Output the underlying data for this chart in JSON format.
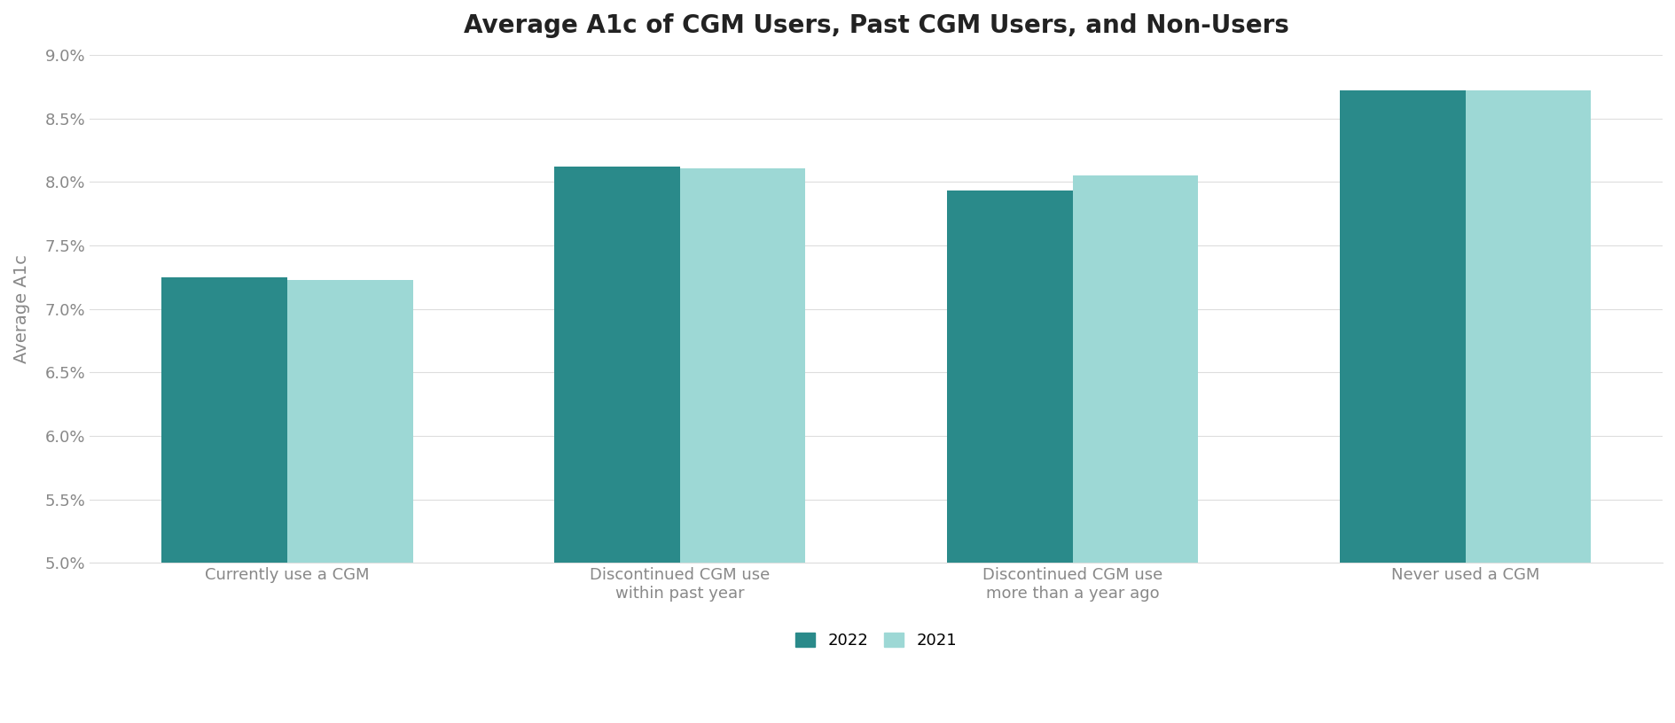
{
  "title": "Average A1c of CGM Users, Past CGM Users, and Non-Users",
  "categories": [
    "Currently use a CGM",
    "Discontinued CGM use\nwithin past year",
    "Discontinued CGM use\nmore than a year ago",
    "Never used a CGM"
  ],
  "values_2022": [
    7.25,
    8.12,
    7.93,
    8.72
  ],
  "values_2021": [
    7.23,
    8.11,
    8.05,
    8.72
  ],
  "color_2022": "#2a8a8a",
  "color_2021": "#9dd8d5",
  "ylabel": "Average A1c",
  "ymin": 5.0,
  "ymax": 9.0,
  "yticks": [
    5.0,
    5.5,
    6.0,
    6.5,
    7.0,
    7.5,
    8.0,
    8.5,
    9.0
  ],
  "ytick_labels": [
    "5.0%",
    "5.5%",
    "6.0%",
    "6.5%",
    "7.0%",
    "7.5%",
    "8.0%",
    "8.5%",
    "9.0%"
  ],
  "legend_labels": [
    "2022",
    "2021"
  ],
  "background_color": "#ffffff",
  "bar_width": 0.32,
  "title_fontsize": 20,
  "axis_label_fontsize": 14,
  "tick_fontsize": 13,
  "legend_fontsize": 13,
  "tick_color": "#aaaaaa",
  "label_color": "#888888",
  "title_color": "#222222",
  "grid_color": "#dddddd",
  "bottom_spine_color": "#dddddd"
}
